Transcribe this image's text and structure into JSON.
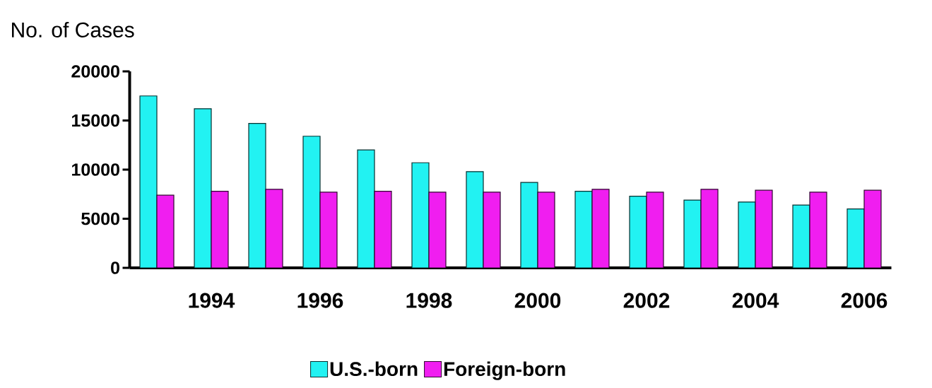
{
  "chart_data": {
    "type": "bar",
    "ylabel": "No. of Cases",
    "categories": [
      null,
      "1994",
      null,
      "1996",
      null,
      "1998",
      null,
      "2000",
      null,
      "2002",
      null,
      "2004",
      null,
      "2006"
    ],
    "series": [
      {
        "name": "U.S.-born",
        "color": "#22f2f2",
        "values": [
          17500,
          16200,
          14700,
          13400,
          12000,
          10700,
          9800,
          8700,
          7800,
          7300,
          6900,
          6700,
          6400,
          6000
        ]
      },
      {
        "name": "Foreign-born",
        "color": "#f01ef0",
        "values": [
          7400,
          7800,
          8000,
          7700,
          7800,
          7700,
          7700,
          7700,
          8000,
          7700,
          8000,
          7900,
          7700,
          7900
        ]
      }
    ],
    "ylim": [
      0,
      20000
    ],
    "yticks": [
      0,
      5000,
      10000,
      15000,
      20000
    ],
    "grid": false,
    "legend": "bottom"
  }
}
